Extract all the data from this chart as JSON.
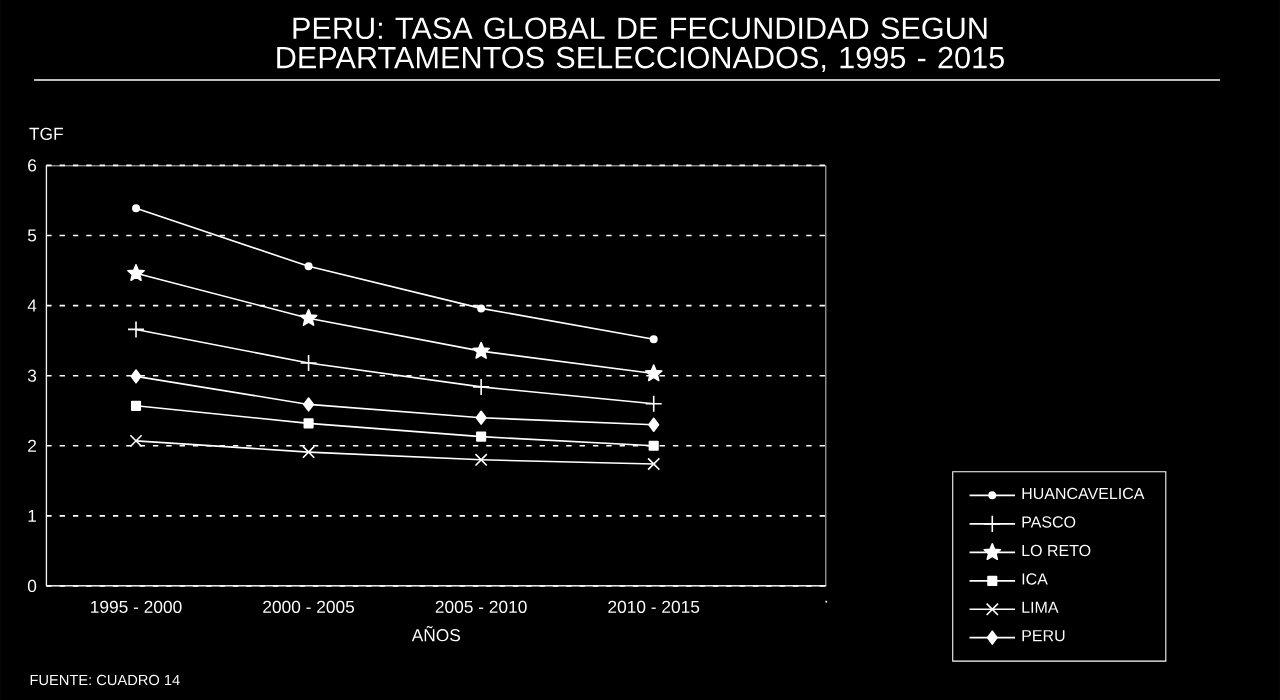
{
  "chart_data": {
    "type": "line",
    "title": "PERU: TASA GLOBAL DE FECUNDIDAD SEGUN DEPARTAMENTOS SELECCIONADOS, 1995 - 2015",
    "xlabel": "AÑOS",
    "ylabel": "TGF",
    "categories": [
      "1995 - 2000",
      "2000 - 2005",
      "2005 - 2010",
      "2010 - 2015",
      "."
    ],
    "series": [
      {
        "name": "HUANCAVELICA",
        "color": "#ffffff",
        "marker": "circle",
        "values": [
          5.39,
          4.56,
          3.96,
          3.52,
          null
        ]
      },
      {
        "name": "PASCO",
        "color": "#ffffff",
        "marker": "plus",
        "values": [
          3.66,
          3.18,
          2.84,
          2.6,
          null
        ]
      },
      {
        "name": "LO RETO",
        "color": "#ffffff",
        "marker": "star",
        "values": [
          4.46,
          3.82,
          3.35,
          3.03,
          null
        ]
      },
      {
        "name": "ICA",
        "color": "#ffffff",
        "marker": "square",
        "values": [
          2.57,
          2.32,
          2.13,
          2.0,
          null
        ]
      },
      {
        "name": "LIMA",
        "color": "#ffffff",
        "marker": "cross",
        "values": [
          2.07,
          1.91,
          1.8,
          1.74,
          null
        ]
      },
      {
        "name": "PERU",
        "color": "#ffffff",
        "marker": "diamond",
        "values": [
          2.99,
          2.59,
          2.4,
          2.3,
          null
        ]
      }
    ],
    "ylim": [
      0,
      6
    ],
    "yticks": [
      0,
      1,
      2,
      3,
      4,
      5,
      6
    ],
    "grid": "y",
    "legend": "bottom right",
    "line_style": "solid",
    "annotations": [
      "FUENTE: CUADRO 14"
    ]
  }
}
